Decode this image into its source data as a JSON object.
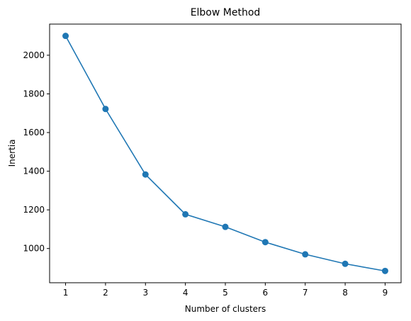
{
  "chart_data": {
    "type": "line",
    "title": "Elbow Method",
    "xlabel": "Number of clusters",
    "ylabel": "Inertia",
    "x": [
      1,
      2,
      3,
      4,
      5,
      6,
      7,
      8,
      9
    ],
    "series": [
      {
        "values": [
          2100,
          1722,
          1383,
          1177,
          1112,
          1033,
          970,
          921,
          884
        ]
      }
    ],
    "xlim": [
      0.6,
      9.4
    ],
    "ylim": [
      823,
      2161
    ],
    "xticks": [
      "1",
      "2",
      "3",
      "4",
      "5",
      "6",
      "7",
      "8",
      "9"
    ],
    "yticks": [
      "1000",
      "1200",
      "1400",
      "1600",
      "1800",
      "2000"
    ],
    "marker": "circle",
    "color": "#1f77b4",
    "grid": false,
    "legend": false
  }
}
